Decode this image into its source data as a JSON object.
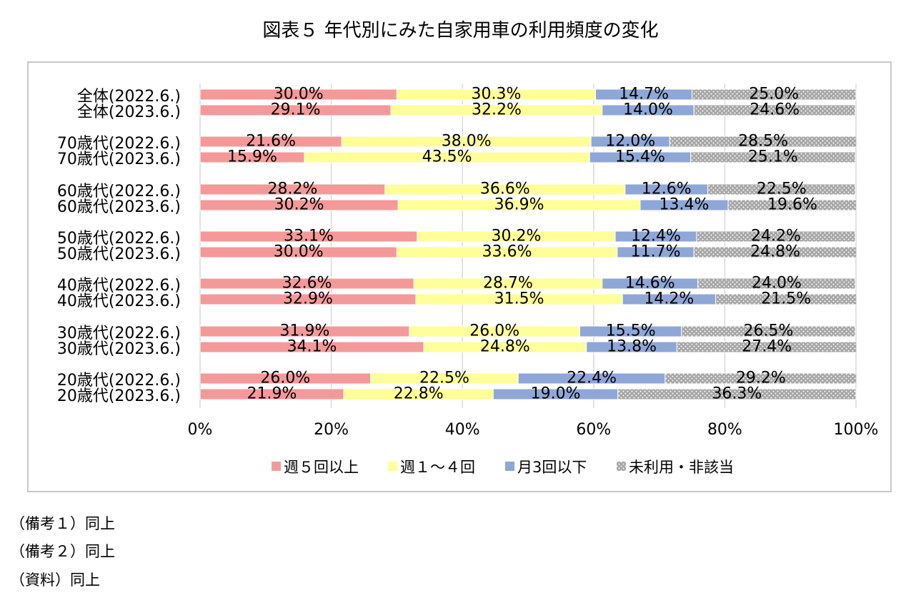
{
  "title": "図表５ 年代別にみた自家用車の利用頻度の変化",
  "notes": [
    "（備考１）同上",
    "（備考２）同上",
    "（資料）同上"
  ],
  "colors": {
    "週５回以上": "#f4999a",
    "週１～４回": "#ffff99",
    "月3回以下": "#8fa7d6",
    "未利用・非該当": "#a6a6a6"
  },
  "chart_data": {
    "type": "bar",
    "orientation": "horizontal",
    "stacked": "percent",
    "categories": [
      "全体(2022.6.)",
      "全体(2023.6.)",
      "70歳代(2022.6.)",
      "70歳代(2023.6.)",
      "60歳代(2022.6.)",
      "60歳代(2023.6.)",
      "50歳代(2022.6.)",
      "50歳代(2023.6.)",
      "40歳代(2022.6.)",
      "40歳代(2023.6.)",
      "30歳代(2022.6.)",
      "30歳代(2023.6.)",
      "20歳代(2022.6.)",
      "20歳代(2023.6.)"
    ],
    "series": [
      {
        "name": "週５回以上",
        "values": [
          30.0,
          29.1,
          21.6,
          15.9,
          28.2,
          30.2,
          33.1,
          30.0,
          32.6,
          32.9,
          31.9,
          34.1,
          26.0,
          21.9
        ]
      },
      {
        "name": "週１～４回",
        "values": [
          30.3,
          32.2,
          38.0,
          43.5,
          36.6,
          36.9,
          30.2,
          33.6,
          28.7,
          31.5,
          26.0,
          24.8,
          22.5,
          22.8
        ]
      },
      {
        "name": "月3回以下",
        "values": [
          14.7,
          14.0,
          12.0,
          15.4,
          12.6,
          13.4,
          12.4,
          11.7,
          14.6,
          14.2,
          15.5,
          13.8,
          22.4,
          19.0
        ]
      },
      {
        "name": "未利用・非該当",
        "values": [
          25.0,
          24.6,
          28.5,
          25.1,
          22.5,
          19.6,
          24.2,
          24.8,
          24.0,
          21.5,
          26.5,
          27.4,
          29.2,
          36.3
        ]
      }
    ],
    "labels": [
      [
        "30.0%",
        "29.1%",
        "21.6%",
        "15.9%",
        "28.2%",
        "30.2%",
        "33.1%",
        "30.0%",
        "32.6%",
        "32.9%",
        "31.9%",
        "34.1%",
        "26.0%",
        "21.9%"
      ],
      [
        "30.3%",
        "32.2%",
        "38.0%",
        "43.5%",
        "36.6%",
        "36.9%",
        "30.2%",
        "33.6%",
        "28.7%",
        "31.5%",
        "26.0%",
        "24.8%",
        "22.5%",
        "22.8%"
      ],
      [
        "14.7%",
        "14.0%",
        "12.0%",
        "15.4%",
        "12.6%",
        "13.4%",
        "12.4%",
        "11.7%",
        "14.6%",
        "14.2%",
        "15.5%",
        "13.8%",
        "22.4%",
        "19.0%"
      ],
      [
        "25.0%",
        "24.6%",
        "28.5%",
        "25.1%",
        "22.5%",
        "19.6%",
        "24.2%",
        "24.8%",
        "24.0%",
        "21.5%",
        "26.5%",
        "27.4%",
        "29.2%",
        "36.3%"
      ]
    ],
    "xticks": [
      "0%",
      "20%",
      "40%",
      "60%",
      "80%",
      "100%"
    ],
    "xlim": [
      0,
      100
    ],
    "grid": true,
    "legend_position": "bottom"
  }
}
